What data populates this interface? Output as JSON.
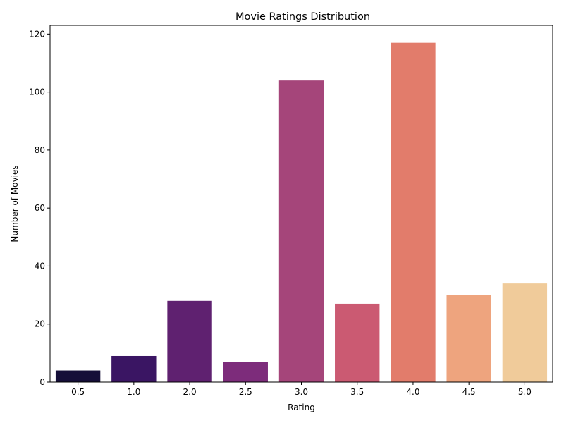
{
  "chart_data": {
    "type": "bar",
    "title": "Movie Ratings Distribution",
    "xlabel": "Rating",
    "ylabel": "Number of Movies",
    "categories": [
      "0.5",
      "1.0",
      "2.0",
      "2.5",
      "3.0",
      "3.5",
      "4.0",
      "4.5",
      "5.0"
    ],
    "values": [
      4,
      9,
      28,
      7,
      104,
      27,
      117,
      30,
      34
    ],
    "colors": [
      "#150e38",
      "#3a1563",
      "#5f2170",
      "#7d2c7b",
      "#a5457a",
      "#cb5a72",
      "#e27c6b",
      "#eea47e",
      "#f0cb9a"
    ],
    "ylim": [
      0,
      123
    ],
    "yticks": [
      0,
      20,
      40,
      60,
      80,
      100,
      120
    ],
    "grid": false,
    "legend": "none"
  }
}
